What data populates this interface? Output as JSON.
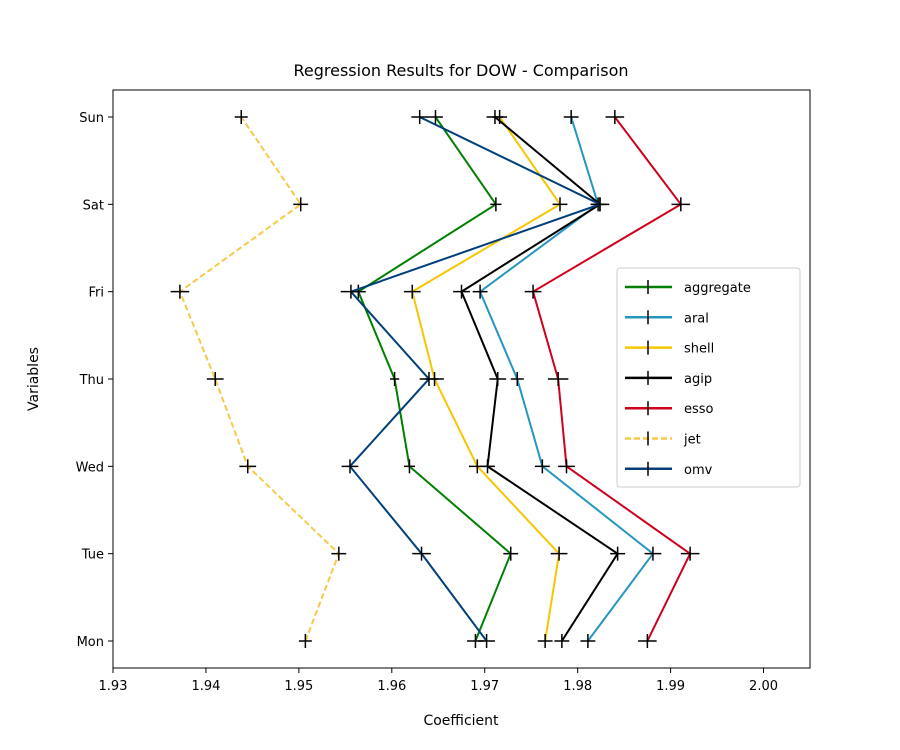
{
  "chart_data": {
    "type": "line",
    "title": "Regression Results for DOW - Comparison",
    "xlabel": "Coefficient",
    "ylabel": "Variables",
    "xlim": [
      1.93,
      2.005
    ],
    "xticks": [
      1.93,
      1.94,
      1.95,
      1.96,
      1.97,
      1.98,
      1.99,
      2.0
    ],
    "xtick_labels": [
      "1.93",
      "1.94",
      "1.95",
      "1.96",
      "1.97",
      "1.98",
      "1.99",
      "2.00"
    ],
    "categories": [
      "Mon",
      "Tue",
      "Wed",
      "Thu",
      "Fri",
      "Sat",
      "Sun"
    ],
    "legend_position": "center-right",
    "grid": false,
    "series": [
      {
        "name": "aggregate",
        "color": "#008000",
        "dashed": false,
        "values": [
          1.969,
          1.9728,
          1.9619,
          1.9603,
          1.9564,
          1.9712,
          1.9647
        ],
        "err": [
          0.0009,
          0.0008,
          0.0006,
          0.0005,
          0.0008,
          0.0006,
          0.0008
        ]
      },
      {
        "name": "aral",
        "color": "#2696c0",
        "dashed": false,
        "values": [
          1.9811,
          1.9881,
          1.9762,
          1.9735,
          1.9695,
          1.9822,
          1.9793
        ],
        "err": [
          0.0008,
          0.0009,
          0.0008,
          0.0007,
          0.0008,
          0.0008,
          0.0008
        ]
      },
      {
        "name": "shell",
        "color": "#f7c600",
        "dashed": false,
        "values": [
          1.9765,
          1.978,
          1.9692,
          1.9646,
          1.9622,
          1.9781,
          1.9716
        ],
        "err": [
          0.0008,
          0.0009,
          0.0009,
          0.001,
          0.0009,
          0.0008,
          0.0008
        ]
      },
      {
        "name": "agip",
        "color": "#000000",
        "dashed": false,
        "values": [
          1.9783,
          1.9843,
          1.9703,
          1.9714,
          1.9675,
          1.9824,
          1.9711
        ],
        "err": [
          0.0008,
          0.0008,
          0.0008,
          0.0009,
          0.0009,
          0.001,
          0.0009
        ]
      },
      {
        "name": "esso",
        "color": "#d0001c",
        "dashed": false,
        "values": [
          1.9875,
          1.9921,
          1.9788,
          1.9779,
          1.9752,
          1.9911,
          1.984
        ],
        "err": [
          0.001,
          0.001,
          0.0009,
          0.0011,
          0.0009,
          0.001,
          0.001
        ]
      },
      {
        "name": "jet",
        "color": "#f7c948",
        "dashed": true,
        "values": [
          1.9507,
          1.9543,
          1.9445,
          1.941,
          1.9372,
          1.9502,
          1.9438
        ],
        "err": [
          0.0007,
          0.0008,
          0.0009,
          0.0009,
          0.001,
          0.0008,
          0.0007
        ]
      },
      {
        "name": "omv",
        "color": "#003f7a",
        "dashed": false,
        "values": [
          1.9702,
          1.9632,
          1.9555,
          1.964,
          1.9556,
          1.9824,
          1.963
        ],
        "err": [
          0.0009,
          0.001,
          0.0009,
          0.001,
          0.0011,
          0.0007,
          0.0009
        ]
      }
    ]
  }
}
